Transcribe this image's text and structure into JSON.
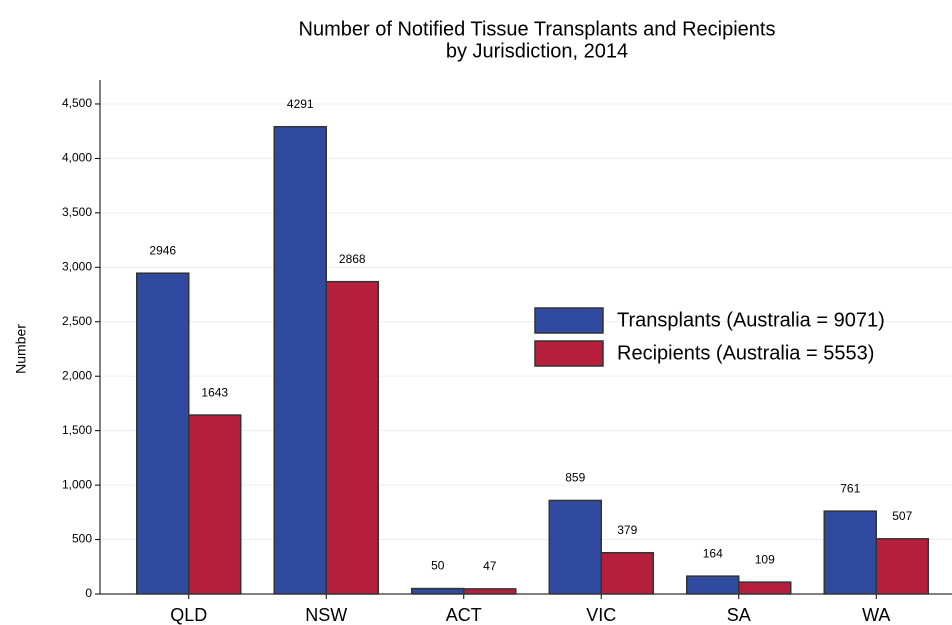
{
  "chart_data": {
    "type": "bar",
    "title": [
      "Number of Notified Tissue Transplants and Recipients",
      "by Jurisdiction, 2014"
    ],
    "y_label": "Number",
    "categories": [
      "QLD",
      "NSW",
      "ACT",
      "VIC",
      "SA",
      "WA"
    ],
    "series": [
      {
        "name": "Transplants (Australia = 9071)",
        "color": "#2f4a9f",
        "values": [
          2946,
          4291,
          50,
          859,
          164,
          761
        ]
      },
      {
        "name": "Recipients (Australia = 5553)",
        "color": "#b51f3b",
        "values": [
          1643,
          2868,
          47,
          379,
          109,
          507
        ]
      }
    ],
    "ylim": [
      0,
      4720
    ],
    "yticks": [
      0,
      500,
      {
        "value": 1000,
        "label": "1,000"
      },
      {
        "value": 1500,
        "label": "1,500"
      },
      {
        "value": 2000,
        "label": "2,000"
      },
      {
        "value": 2500,
        "label": "2,500"
      },
      {
        "value": 3000,
        "label": "3,000"
      },
      {
        "value": 3500,
        "label": "3,500"
      },
      {
        "value": 4000,
        "label": "4,000"
      },
      {
        "value": 4500,
        "label": "4,500"
      }
    ],
    "grid": true,
    "legend_position": "center right"
  }
}
